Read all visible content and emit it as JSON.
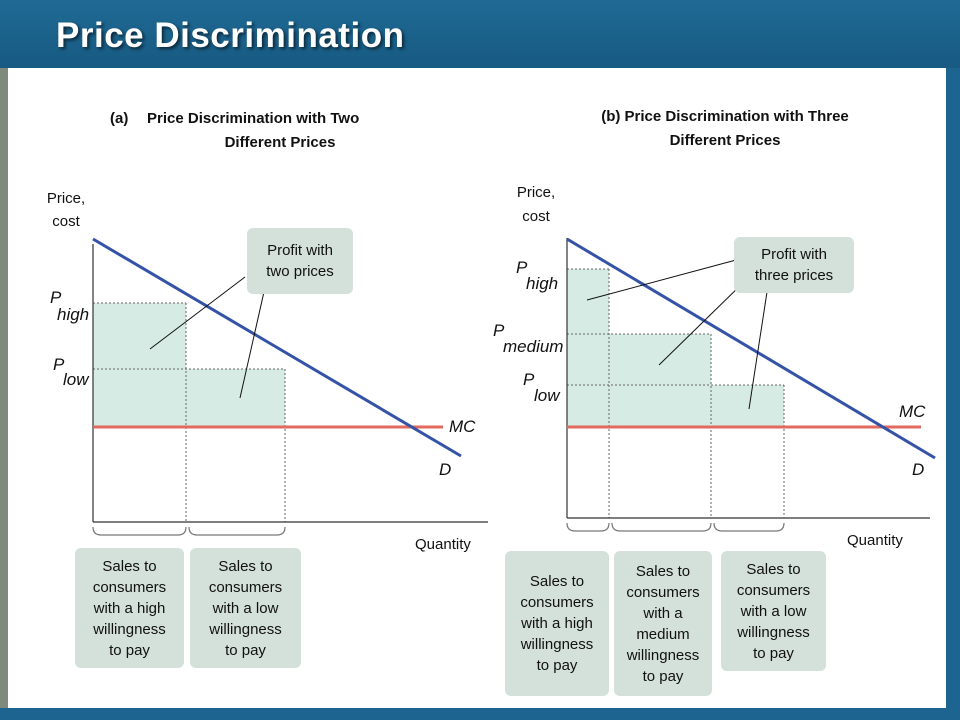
{
  "slide": {
    "title": "Price Discrimination"
  },
  "colors": {
    "demand": "#3553a6",
    "mc": "#e2695d",
    "profit": "#d6ebe4",
    "callout": "#d4e1da",
    "titlebar": "#1d6590"
  },
  "panel_a": {
    "title_prefix": "(a)",
    "title_line1": "Price Discrimination with Two",
    "title_line2": "Different Prices",
    "y_axis_line1": "Price,",
    "y_axis_line2": "cost",
    "x_axis": "Quantity",
    "p_high": "P",
    "p_high_sub": "high",
    "p_low": "P",
    "p_low_sub": "low",
    "mc": "MC",
    "d": "D",
    "profit_line1": "Profit with",
    "profit_line2": "two prices",
    "sales_high": [
      "Sales to",
      "consumers",
      "with a high",
      "willingness",
      "to pay"
    ],
    "sales_low": [
      "Sales to",
      "consumers",
      "with a low",
      "willingness",
      "to pay"
    ]
  },
  "panel_b": {
    "title_line1": "(b) Price Discrimination with Three",
    "title_line2": "Different Prices",
    "y_axis_line1": "Price,",
    "y_axis_line2": "cost",
    "x_axis": "Quantity",
    "p_high": "P",
    "p_high_sub": "high",
    "p_medium": "P",
    "p_medium_sub": "medium",
    "p_low": "P",
    "p_low_sub": "low",
    "mc": "MC",
    "d": "D",
    "profit_line1": "Profit with",
    "profit_line2": "three prices",
    "sales_high": [
      "Sales to",
      "consumers",
      "with a high",
      "willingness",
      "to pay"
    ],
    "sales_medium": [
      "Sales to",
      "consumers",
      "with a",
      "medium",
      "willingness",
      "to pay"
    ],
    "sales_low": [
      "Sales to",
      "consumers",
      "with a low",
      "willingness",
      "to pay"
    ]
  }
}
